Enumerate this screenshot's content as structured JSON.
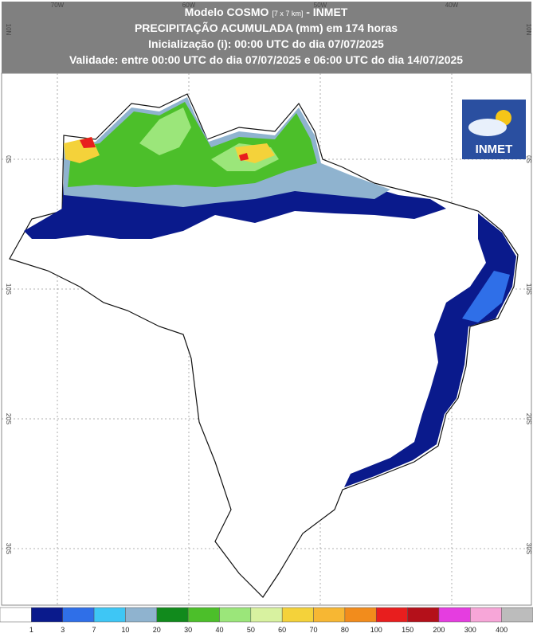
{
  "header": {
    "model": "Modelo COSMO",
    "resolution": "[7 x 7 km]",
    "agency": "- INMET",
    "line2": "PRECIPITAÇÃO ACUMULADA (mm) em 174 horas",
    "line3": "Inicialização (i): 00:00 UTC do dia 07/07/2025",
    "line4": "Validade: entre 00:00 UTC do dia 07/07/2025 e 06:00 UTC do dia 14/07/2025"
  },
  "grid": {
    "lon_labels": [
      "70W",
      "60W",
      "50W",
      "40W"
    ],
    "lat_labels": [
      "10N",
      "0S",
      "10S",
      "20S",
      "30S"
    ]
  },
  "logo": {
    "text": "INMET"
  },
  "legend": {
    "labels": [
      "1",
      "3",
      "7",
      "10",
      "20",
      "30",
      "40",
      "50",
      "60",
      "70",
      "80",
      "100",
      "150",
      "200",
      "300",
      "400"
    ],
    "colors": [
      "#ffffff",
      "#0a1a8c",
      "#2f6fe8",
      "#3ec6f5",
      "#8fb3cf",
      "#118a1c",
      "#4cbf2a",
      "#9be67a",
      "#d8f2a0",
      "#f4d23a",
      "#f7b733",
      "#f28c1c",
      "#e81e1e",
      "#b4101a",
      "#e53de0",
      "#f7a6d8",
      "#bcbcbc"
    ]
  }
}
